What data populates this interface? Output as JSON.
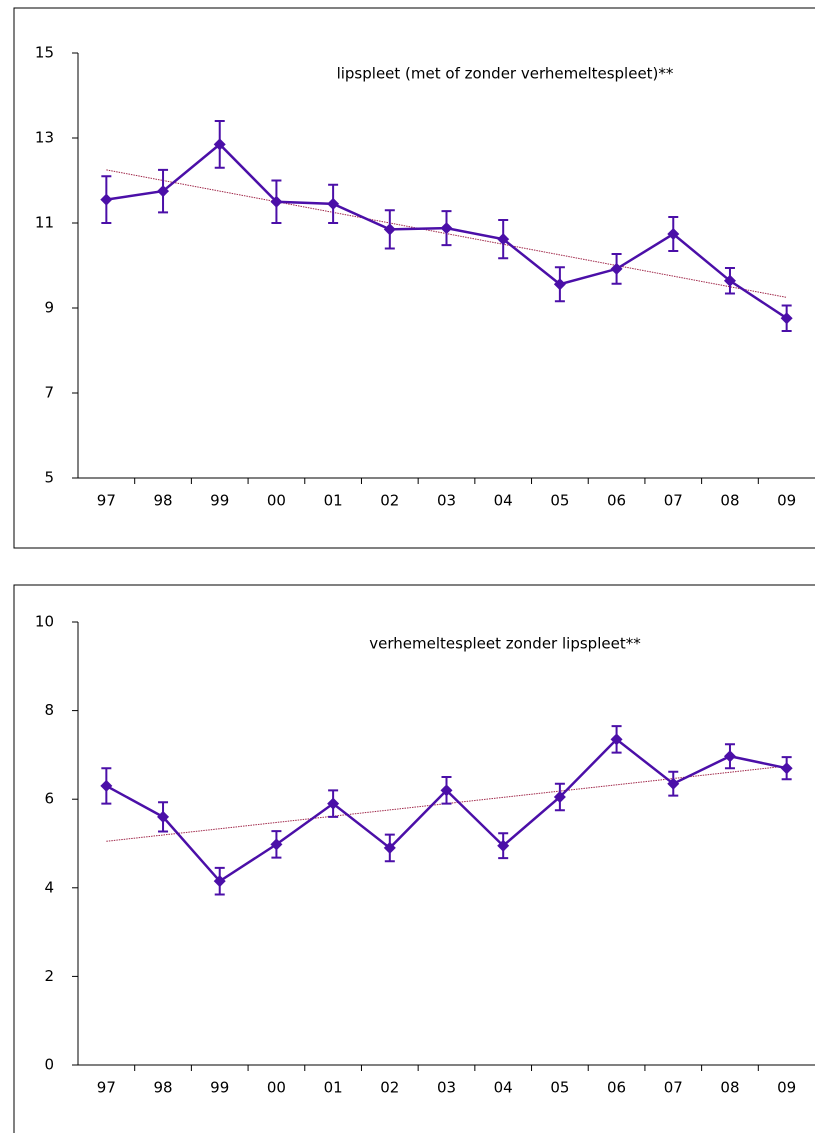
{
  "chart_data": [
    {
      "type": "line",
      "title": "lipspleet (met of zonder verhemeltespleet)**",
      "categories": [
        "97",
        "98",
        "99",
        "00",
        "01",
        "02",
        "03",
        "04",
        "05",
        "06",
        "07",
        "08",
        "09"
      ],
      "series": [
        {
          "color": "#4b0fa8",
          "values": [
            11.55,
            11.75,
            12.85,
            11.5,
            11.45,
            10.85,
            10.88,
            10.62,
            9.56,
            9.92,
            10.74,
            9.64,
            8.76
          ],
          "errors": [
            0.55,
            0.5,
            0.55,
            0.5,
            0.45,
            0.45,
            0.4,
            0.45,
            0.4,
            0.35,
            0.4,
            0.3,
            0.3
          ]
        }
      ],
      "trendline": {
        "color": "#a0284a",
        "values": [
          12.25,
          9.25
        ]
      },
      "ylim": [
        5,
        15
      ],
      "yticks": [
        5,
        7,
        9,
        11,
        13,
        15
      ]
    },
    {
      "type": "line",
      "title": "verhemeltespleet zonder lipspleet**",
      "categories": [
        "97",
        "98",
        "99",
        "00",
        "01",
        "02",
        "03",
        "04",
        "05",
        "06",
        "07",
        "08",
        "09"
      ],
      "series": [
        {
          "color": "#4b0fa8",
          "values": [
            6.3,
            5.6,
            4.15,
            4.98,
            5.9,
            4.9,
            6.2,
            4.95,
            6.05,
            7.35,
            6.35,
            6.97,
            6.7
          ],
          "errors": [
            0.4,
            0.33,
            0.3,
            0.3,
            0.3,
            0.3,
            0.3,
            0.28,
            0.3,
            0.3,
            0.27,
            0.27,
            0.25
          ]
        }
      ],
      "trendline": {
        "color": "#a0284a",
        "values": [
          5.05,
          6.75
        ]
      },
      "ylim": [
        0,
        10
      ],
      "yticks": [
        0,
        2,
        4,
        6,
        8,
        10
      ]
    }
  ]
}
